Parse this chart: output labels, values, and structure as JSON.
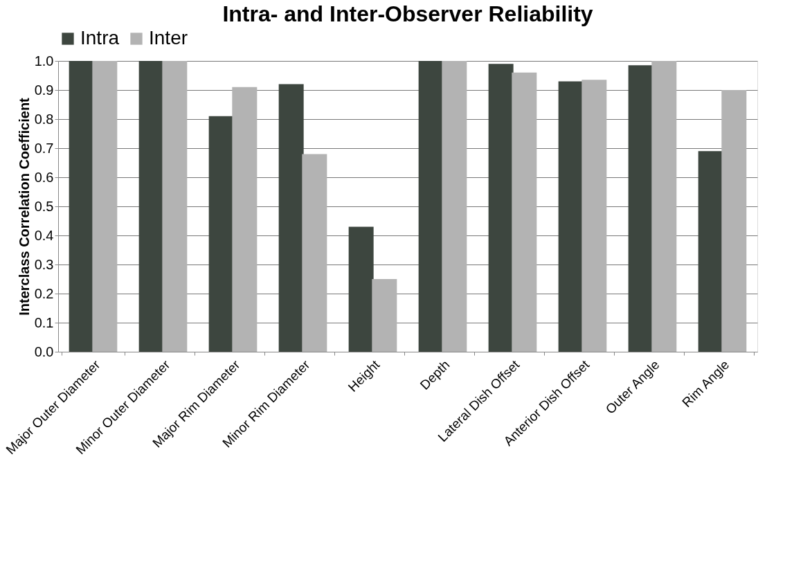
{
  "chart_data": {
    "type": "bar",
    "title": "Intra- and Inter-Observer Reliability",
    "ylabel": "Interclass Correlation Coefficient",
    "categories": [
      "Major Outer Diameter",
      "Minor Outer Diameter",
      "Major Rim Diameter",
      "Minor Rim Diameter",
      "Height",
      "Depth",
      "Lateral Dish Offset",
      "Anterior Dish Offset",
      "Outer Angle",
      "Rim Angle"
    ],
    "series": [
      {
        "name": "Intra",
        "color": "#3d463f",
        "values": [
          1.0,
          1.0,
          0.81,
          0.92,
          0.43,
          1.0,
          0.99,
          0.93,
          0.985,
          0.69
        ]
      },
      {
        "name": "Inter",
        "color": "#b3b3b3",
        "values": [
          1.0,
          1.0,
          0.91,
          0.68,
          0.25,
          1.0,
          0.96,
          0.935,
          1.0,
          0.9
        ]
      }
    ],
    "ylim": [
      0,
      1.0
    ],
    "yticks": [
      {
        "value": 0,
        "label": "0.0"
      },
      0.1,
      0.2,
      0.3,
      0.4,
      0.5,
      0.6,
      0.7,
      0.8,
      0.9,
      {
        "value": 1,
        "label": "1.0"
      }
    ],
    "grid": "y",
    "legend": "top"
  }
}
